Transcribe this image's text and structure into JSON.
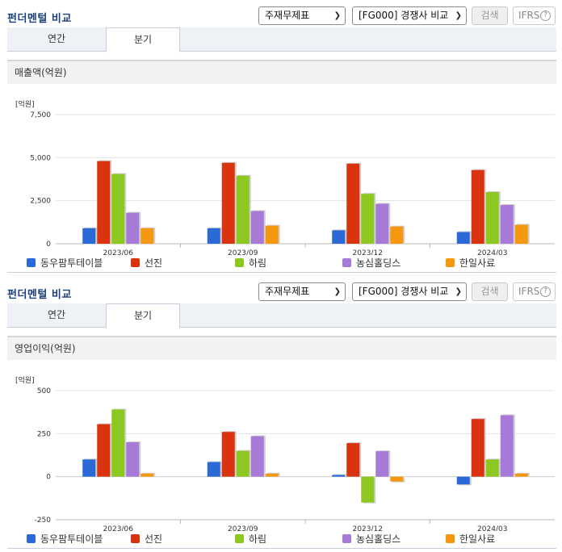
{
  "panels": [
    {
      "title": "펀더멘털 비교",
      "select_statement": "주재무제표",
      "select_compare": "[FG000] 경쟁사 비교",
      "search_button": "검색",
      "ifrs_label": "IFRS",
      "help_icon": "?",
      "tabs": [
        "연간",
        "분기"
      ],
      "active_tab": "분기",
      "metric_title": "매출액(억원)"
    },
    {
      "title": "펀더멘털 비교",
      "select_statement": "주재무제표",
      "select_compare": "[FG000] 경쟁사 비교",
      "search_button": "검색",
      "ifrs_label": "IFRS",
      "help_icon": "?",
      "tabs": [
        "연간",
        "분기"
      ],
      "active_tab": "분기",
      "metric_title": "영업이익(억원)"
    }
  ],
  "chart_data": [
    {
      "type": "bar",
      "unit_label": "[억원]",
      "categories": [
        "2023/06",
        "2023/09",
        "2023/12",
        "2024/03"
      ],
      "ylim": [
        0,
        7500
      ],
      "yticks": [
        0,
        2500,
        5000,
        7500
      ],
      "ytick_labels": [
        "0",
        "2,500",
        "5,000",
        "7,500"
      ],
      "grid": true,
      "legend_position": "bottom",
      "series": [
        {
          "name": "동우팜투테이블",
          "color": "#2b6ad6",
          "values": [
            900,
            900,
            780,
            680
          ]
        },
        {
          "name": "선진",
          "color": "#d9340f",
          "values": [
            4800,
            4700,
            4650,
            4280
          ]
        },
        {
          "name": "하림",
          "color": "#8cc820",
          "values": [
            4050,
            3950,
            2900,
            3000
          ]
        },
        {
          "name": "농심홀딩스",
          "color": "#a77ad8",
          "values": [
            1800,
            1900,
            2320,
            2250
          ]
        },
        {
          "name": "한일사료",
          "color": "#f5970f",
          "values": [
            900,
            1050,
            1000,
            1100
          ]
        }
      ]
    },
    {
      "type": "bar",
      "unit_label": "[억원]",
      "categories": [
        "2023/06",
        "2023/09",
        "2023/12",
        "2024/03"
      ],
      "ylim": [
        -250,
        500
      ],
      "yticks": [
        -250,
        0,
        250,
        500
      ],
      "ytick_labels": [
        "-250",
        "0",
        "250",
        "500"
      ],
      "grid": true,
      "legend_position": "bottom",
      "series": [
        {
          "name": "동우팜투테이블",
          "color": "#2b6ad6",
          "values": [
            100,
            85,
            10,
            -45
          ]
        },
        {
          "name": "선진",
          "color": "#d9340f",
          "values": [
            305,
            260,
            195,
            335
          ]
        },
        {
          "name": "하림",
          "color": "#8cc820",
          "values": [
            390,
            150,
            -150,
            100
          ]
        },
        {
          "name": "농심홀딩스",
          "color": "#a77ad8",
          "values": [
            200,
            235,
            148,
            357
          ]
        },
        {
          "name": "한일사료",
          "color": "#f5970f",
          "values": [
            18,
            18,
            -28,
            18
          ]
        }
      ]
    }
  ]
}
